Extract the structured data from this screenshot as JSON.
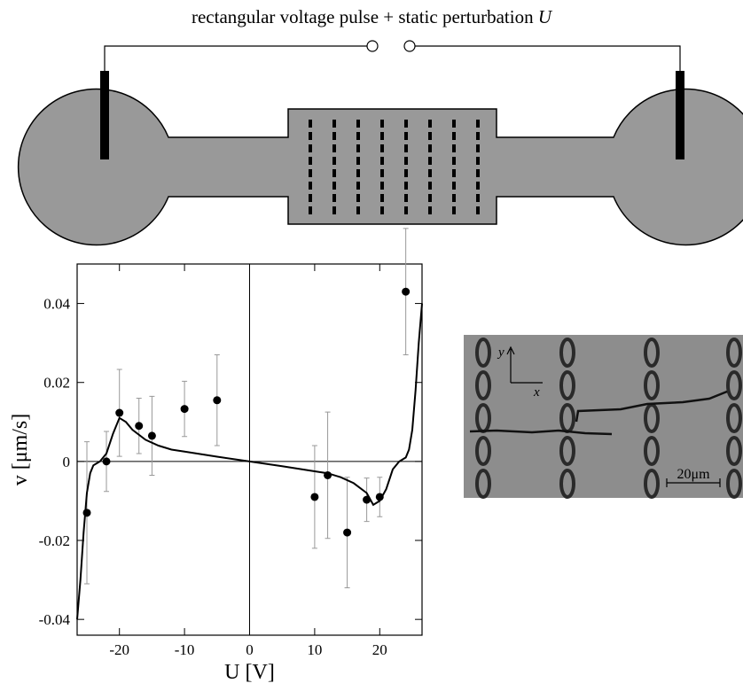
{
  "diagram": {
    "label": "rectangular voltage pulse + static perturbation",
    "label_symbol": "U"
  },
  "chart_data": {
    "type": "scatter",
    "xlabel": "U [V]",
    "ylabel": "v [μm/s]",
    "xlim": [
      -26.5,
      26.5
    ],
    "ylim": [
      -0.044,
      0.05
    ],
    "xticks": [
      -20,
      -10,
      0,
      10,
      20
    ],
    "yticks": [
      -0.04,
      -0.02,
      0,
      0.02,
      0.04
    ],
    "color": "#000000",
    "points": {
      "x": [
        -25,
        -22,
        -20,
        -17,
        -15,
        -10,
        -5,
        10,
        12,
        15,
        18,
        20,
        24
      ],
      "values": [
        -0.013,
        0,
        0.0123,
        0.009,
        0.0065,
        0.0133,
        0.0155,
        -0.009,
        -0.0035,
        -0.018,
        -0.0097,
        -0.009,
        0.043
      ],
      "errors": [
        0.018,
        0.0076,
        0.011,
        0.007,
        0.01,
        0.007,
        0.0115,
        0.013,
        0.016,
        0.014,
        0.0055,
        0.005,
        0.016
      ]
    },
    "curve": {
      "x": [
        -26.5,
        -26,
        -25.5,
        -25,
        -24.5,
        -24,
        -23,
        -22,
        -21,
        -20,
        -19,
        -18,
        -16,
        -14,
        -12,
        -10,
        -5,
        0,
        5,
        10,
        12,
        14,
        16,
        18,
        19,
        20,
        21,
        22,
        23,
        24,
        24.5,
        25,
        25.5,
        26,
        26.5
      ],
      "values": [
        -0.04,
        -0.03,
        -0.018,
        -0.008,
        -0.003,
        -0.001,
        0,
        0.002,
        0.007,
        0.011,
        0.01,
        0.008,
        0.0055,
        0.004,
        0.003,
        0.0025,
        0.0012,
        0,
        -0.0012,
        -0.0025,
        -0.003,
        -0.004,
        -0.0055,
        -0.008,
        -0.011,
        -0.01,
        -0.007,
        -0.002,
        0,
        0.001,
        0.003,
        0.008,
        0.018,
        0.03,
        0.04
      ]
    }
  },
  "micrograph": {
    "axis_y": "y",
    "axis_x": "x",
    "scale_bar": "20μm"
  }
}
